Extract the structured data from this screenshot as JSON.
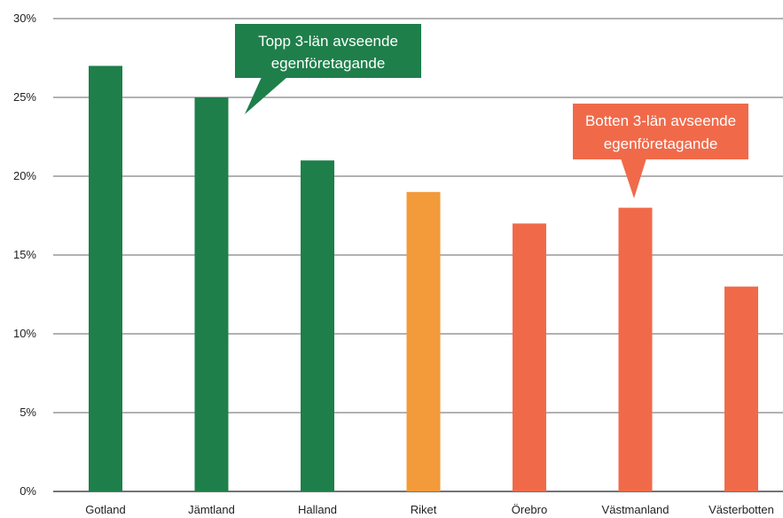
{
  "chart_data": {
    "type": "bar",
    "categories": [
      "Gotland",
      "Jämtland",
      "Halland",
      "Riket",
      "Örebro",
      "Västmanland",
      "Västerbotten"
    ],
    "values": [
      27,
      25,
      21,
      19,
      17,
      18,
      13
    ],
    "bar_colors": [
      "#1e7f4a",
      "#1e7f4a",
      "#1e7f4a",
      "#f39a3a",
      "#f06a4a",
      "#f06a4a",
      "#f06a4a"
    ],
    "y_ticks": [
      "0%",
      "5%",
      "10%",
      "15%",
      "20%",
      "25%",
      "30%"
    ],
    "ylim": [
      0,
      30
    ],
    "grid": true,
    "annotations": [
      {
        "lines": [
          "Topp 3-län avseende",
          "egenföretagande"
        ],
        "color": "#1e7f4a",
        "points_to": "Jämtland"
      },
      {
        "lines": [
          "Botten 3-län avseende",
          "egenföretagande"
        ],
        "color": "#f06a4a",
        "points_to": "Västmanland"
      }
    ]
  }
}
